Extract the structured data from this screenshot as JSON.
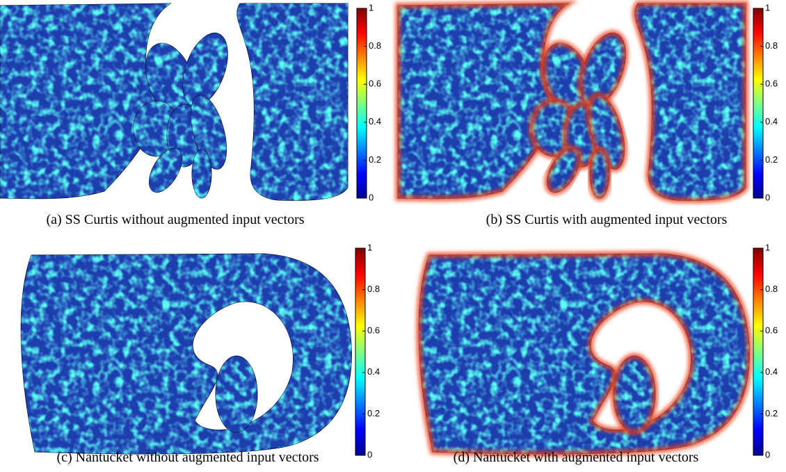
{
  "panels": [
    {
      "caption": "(a) SS Curtis without augmented input vectors",
      "colorbar": {
        "ticks": [
          0,
          0.2,
          0.4,
          0.6,
          0.8,
          1
        ]
      }
    },
    {
      "caption": "(b) SS Curtis with augmented input vectors",
      "colorbar": {
        "ticks": [
          0,
          0.2,
          0.4,
          0.6,
          0.8,
          1
        ]
      }
    },
    {
      "caption": "(c) Nantucket without augmented input vectors",
      "colorbar": {
        "ticks": [
          0,
          0.2,
          0.4,
          0.6,
          0.8,
          1
        ]
      }
    },
    {
      "caption": "(d) Nantucket with augmented input vectors",
      "colorbar": {
        "ticks": [
          0,
          0.2,
          0.4,
          0.6,
          0.8,
          1
        ]
      }
    }
  ]
}
